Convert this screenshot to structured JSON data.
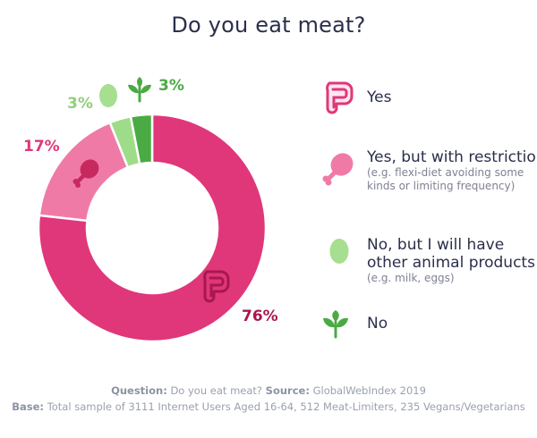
{
  "title": "Do you eat meat?",
  "chart_data": {
    "type": "pie",
    "title": "Do you eat meat?",
    "categories": [
      "Yes",
      "Yes, but with restrictions",
      "No, but I will have other animal products",
      "No"
    ],
    "values": [
      76,
      17,
      3,
      3
    ],
    "value_labels": [
      "76%",
      "17%",
      "3%",
      "3%"
    ],
    "colors": [
      "#e0377a",
      "#f07aa6",
      "#9fdc8a",
      "#4aaa43"
    ],
    "donut": true
  },
  "legend": [
    {
      "label": "Yes",
      "sub": "",
      "icon": "yes-meat-icon",
      "color": "#e0377a"
    },
    {
      "label": "Yes, but with restrictions",
      "sub": "(e.g. flexi-diet avoiding some kinds or limiting frequency)",
      "sub_lines": [
        "(e.g. flexi-diet avoiding some",
        "kinds or limiting frequency)"
      ],
      "icon": "drumstick-icon",
      "color": "#f07aa6"
    },
    {
      "label_lines": [
        "No, but I will have",
        "other animal products"
      ],
      "label": "No, but I will have other animal products",
      "sub": "(e.g. milk, eggs)",
      "icon": "egg-icon",
      "color": "#9fdc8a"
    },
    {
      "label": "No",
      "sub": "",
      "icon": "plant-icon",
      "color": "#4aaa43"
    }
  ],
  "footer": {
    "question_label": "Question:",
    "question_text": "Do you eat meat?",
    "source_label": "Source:",
    "source_text": "GlobalWebIndex 2019",
    "base_label": "Base:",
    "base_text": "Total sample of 3111 Internet Users Aged 16-64, 512 Meat-Limiters, 235 Vegans/Vegetarians"
  }
}
